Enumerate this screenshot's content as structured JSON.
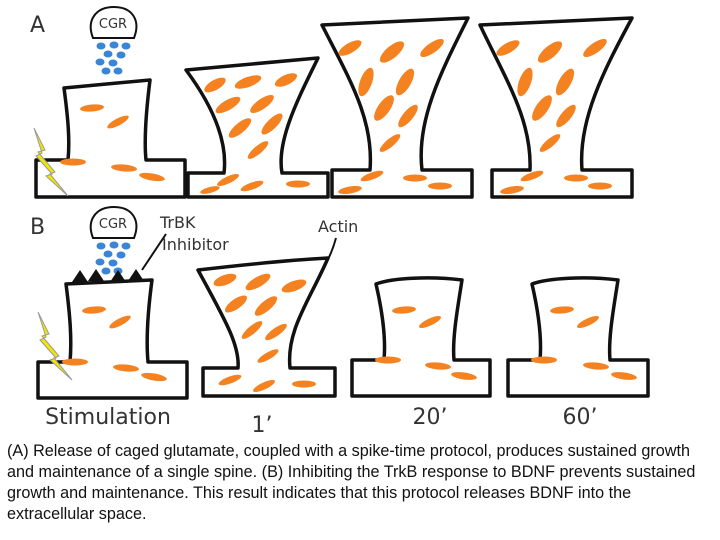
{
  "panel_a": {
    "letter": "A",
    "cgr_label": "CGR"
  },
  "panel_b": {
    "letter": "B",
    "cgr_label": "CGR",
    "inhibitor_label_line1": "TrBK",
    "inhibitor_label_line2": "Inhibitor",
    "actin_label": "Actin"
  },
  "time_labels": [
    "Stimulation",
    "1’",
    "20’",
    "60’"
  ],
  "caption": "(A) Release of caged glutamate, coupled with a spike-time protocol, produces sustained growth and maintenance of a single spine. (B) Inhibiting the TrkB response to BDNF prevents sustained growth and maintenance. This result indicates that this protocol releases BDNF into the extracellular space.",
  "colors": {
    "actin": "#f58220",
    "glutamate": "#3a86d4",
    "lightning": "#f2e600",
    "outline": "#111111"
  }
}
